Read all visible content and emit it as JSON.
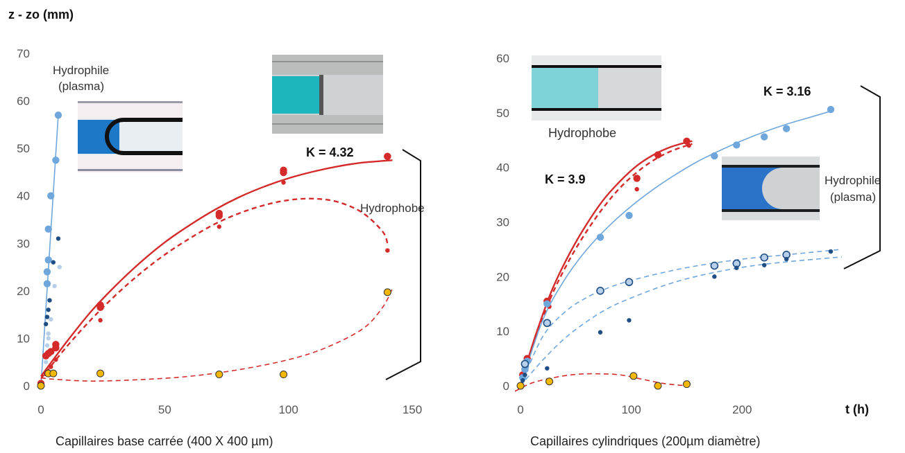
{
  "figure": {
    "ylabel": "z - zo (mm)",
    "xlabel": "t (h)"
  },
  "colors": {
    "red": "#d42a2a",
    "light_blue": "#6fa6dc",
    "pale_blue": "#b8cfe9",
    "dark_blue": "#1f4e85",
    "yellow": "#f2b800"
  },
  "chart_data": [
    {
      "type": "scatter",
      "caption": "Capillaires base carrée (400 X 400 µm)",
      "xlim": [
        0,
        150
      ],
      "ylim": [
        0,
        70
      ],
      "xticks": [
        0,
        50,
        100,
        150
      ],
      "yticks": [
        0,
        10,
        20,
        30,
        40,
        50,
        60,
        70
      ],
      "grid": false,
      "annotations": {
        "hydrophile": [
          "Hydrophile",
          "(plasma)"
        ],
        "hydrophobe": "Hydrophobe",
        "k": "K = 4.32"
      },
      "images": [
        "capillary-photo-blue",
        "capillary-photo-cyan"
      ],
      "series": [
        {
          "color": "#6fa6dc",
          "size": "large",
          "x": [
            2.5,
            2.5,
            3,
            3,
            4,
            6,
            7
          ],
          "y": [
            21.5,
            24,
            26.5,
            33,
            40,
            47.5,
            57
          ],
          "fit": {
            "style": "solid",
            "x": [
              0,
              7
            ],
            "y": [
              0,
              57
            ]
          }
        },
        {
          "color": "#1f4e85",
          "size": "small",
          "x": [
            2,
            2.5,
            3,
            3.5,
            5,
            7
          ],
          "y": [
            13,
            14.5,
            16,
            18,
            26,
            31
          ],
          "fit": null
        },
        {
          "color": "#b8cfe9",
          "size": "small",
          "x": [
            2,
            2.5,
            3,
            3,
            4,
            5.5,
            7.5
          ],
          "y": [
            5,
            8.5,
            10,
            11,
            14,
            21,
            25
          ],
          "fit": null
        },
        {
          "color": "#d42a2a",
          "size": "large",
          "x": [
            0,
            2,
            3,
            4,
            6,
            6,
            24,
            24,
            72,
            72,
            98,
            98,
            140,
            140
          ],
          "y": [
            0.5,
            6.3,
            6.8,
            7.2,
            8,
            8.7,
            16.5,
            17,
            35.8,
            36.3,
            44.9,
            45.4,
            48.3,
            48.3
          ],
          "fit": {
            "style": "solid",
            "x": [
              0,
              10,
              20,
              30,
              40,
              50,
              60,
              70,
              80,
              90,
              100,
              110,
              120,
              130,
              142
            ],
            "y": [
              2,
              9,
              15.5,
              21,
              25.9,
              30.2,
              33.8,
              37,
              39.7,
              41.9,
              43.7,
              45.1,
              46.2,
              47.0,
              47.5
            ]
          }
        },
        {
          "color": "#d42a2a",
          "size": "small",
          "x": [
            2,
            3,
            4,
            6,
            24,
            72,
            98,
            140
          ],
          "y": [
            2.5,
            3,
            4,
            5.5,
            13.8,
            33.5,
            42.8,
            28.5
          ],
          "fit": {
            "style": "dashed",
            "x": [
              0,
              10,
              20,
              30,
              40,
              50,
              60,
              70,
              80,
              90,
              100,
              110,
              120,
              130,
              138,
              140
            ],
            "y": [
              1.5,
              8,
              13.8,
              19,
              23.6,
              27.6,
              31,
              34,
              36.3,
              38,
              39.1,
              39.4,
              38.7,
              36.4,
              32.5,
              30
            ]
          }
        },
        {
          "color": "#f2b800",
          "size": "large",
          "x": [
            0,
            3,
            5,
            24,
            72,
            98,
            140
          ],
          "y": [
            0,
            2.6,
            2.6,
            2.6,
            2.4,
            2.4,
            19.7
          ],
          "fit": {
            "style": "dashed",
            "x": [
              0,
              5,
              20,
              40,
              60,
              80,
              100,
              115,
              130,
              138,
              142
            ],
            "y": [
              1.7,
              1.4,
              1,
              1.3,
              2,
              3.4,
              5.5,
              8,
              12,
              16.5,
              20.5
            ]
          }
        }
      ]
    },
    {
      "type": "scatter",
      "caption": "Capillaires cylindriques (200µm diamètre)",
      "xlabel": "t (h)",
      "xlim": [
        0,
        290
      ],
      "ylim": [
        0,
        60
      ],
      "xticks": [
        0,
        100,
        200
      ],
      "yticks": [
        0,
        10,
        20,
        30,
        40,
        50,
        60
      ],
      "grid": false,
      "annotations": {
        "hydrophobe": "Hydrophobe",
        "hydrophile": [
          "Hydrophile",
          "(plasma)"
        ],
        "k_red": "K = 3.9",
        "k_blue": "K = 3.16"
      },
      "images": [
        "capillary-photo-cyan",
        "capillary-photo-blue"
      ],
      "series": [
        {
          "color": "#d42a2a",
          "size": "large",
          "x": [
            0,
            2,
            4,
            6,
            24,
            105,
            124,
            150
          ],
          "y": [
            0,
            2,
            3,
            5,
            15.5,
            38,
            42.3,
            44.8
          ],
          "fit": {
            "style": "solid",
            "x": [
              0,
              10,
              20,
              30,
              45,
              60,
              75,
              90,
              105,
              120,
              135,
              150,
              155
            ],
            "y": [
              0,
              7,
              13,
              18.3,
              24.5,
              29.7,
              34.1,
              37.5,
              40.3,
              42.3,
              43.7,
              44.6,
              44.8
            ]
          }
        },
        {
          "color": "#d42a2a",
          "size": "small",
          "x": [
            2,
            4,
            26,
            105,
            152
          ],
          "y": [
            1.5,
            3,
            14.5,
            36,
            44
          ],
          "fit": {
            "style": "dashed",
            "x": [
              0,
              10,
              20,
              30,
              45,
              60,
              75,
              90,
              105,
              120,
              135,
              150,
              155
            ],
            "y": [
              0,
              6.5,
              12.3,
              17.4,
              23.4,
              28.4,
              32.7,
              36.3,
              39.1,
              41.3,
              42.9,
              44,
              44.3
            ]
          }
        },
        {
          "color": "#6fa6dc",
          "size": "large",
          "x": [
            2,
            4,
            6,
            24,
            72,
            98,
            175,
            195,
            220,
            240,
            280
          ],
          "y": [
            1.5,
            3,
            4.5,
            15,
            27.2,
            31.2,
            42.1,
            44.1,
            45.6,
            47.1,
            50.6
          ],
          "fit": {
            "style": "solid",
            "x": [
              0,
              20,
              40,
              60,
              80,
              100,
              120,
              140,
              160,
              180,
              200,
              220,
              240,
              260,
              280
            ],
            "y": [
              0,
              12,
              19.5,
              25,
              29.3,
              32.9,
              36,
              38.7,
              41.1,
              43.1,
              44.9,
              46.5,
              47.9,
              49.1,
              50.3
            ]
          }
        },
        {
          "color": "#b8cfe9",
          "size": "ring",
          "x": [
            4,
            24,
            72,
            98,
            175,
            195,
            220,
            240
          ],
          "y": [
            4,
            11.5,
            17.4,
            19,
            22,
            22.4,
            23.5,
            24
          ],
          "fit": {
            "style": "dashed",
            "x": [
              0,
              20,
              40,
              60,
              80,
              100,
              130,
              160,
              200,
              240,
              290
            ],
            "y": [
              0,
              9,
              13.5,
              16.2,
              18,
              19.3,
              20.8,
              22,
              23.2,
              24,
              25
            ]
          }
        },
        {
          "color": "#1f4e85",
          "size": "small",
          "x": [
            2,
            4,
            24,
            72,
            98,
            175,
            195,
            220,
            240,
            280
          ],
          "y": [
            1,
            2,
            3.2,
            9.8,
            12,
            20,
            21.6,
            22.1,
            23.2,
            24.6
          ],
          "fit": {
            "style": "dashed",
            "x": [
              0,
              20,
              40,
              60,
              80,
              100,
              130,
              160,
              200,
              240,
              290
            ],
            "y": [
              0,
              4.7,
              8.7,
              11.8,
              14.3,
              16.1,
              18.4,
              20.1,
              21.7,
              22.7,
              23.6
            ]
          }
        },
        {
          "color": "#f2b800",
          "size": "large",
          "x": [
            0,
            26,
            102,
            124,
            150
          ],
          "y": [
            0,
            0.8,
            1.8,
            0,
            0.3
          ],
          "fit": {
            "style": "dashed",
            "x": [
              -5,
              10,
              30,
              50,
              70,
              90,
              110,
              130,
              150
            ],
            "y": [
              -1,
              0.5,
              1.5,
              2.1,
              2.2,
              2,
              1.2,
              0.4,
              0
            ]
          }
        }
      ]
    }
  ]
}
